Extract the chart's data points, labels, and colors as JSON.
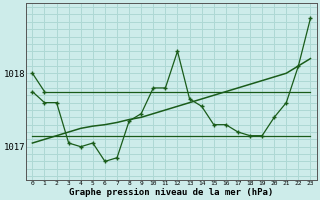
{
  "xlabel": "Graphe pression niveau de la mer (hPa)",
  "hours": [
    0,
    1,
    2,
    3,
    4,
    5,
    6,
    7,
    8,
    9,
    10,
    11,
    12,
    13,
    14,
    15,
    16,
    17,
    18,
    19,
    20,
    21,
    22,
    23
  ],
  "line_flat_high": [
    1018.0,
    1017.75,
    1017.65,
    1017.65,
    1017.65,
    1017.65,
    1017.65,
    1017.65,
    1017.65,
    1017.65,
    1017.65,
    1017.65,
    1017.65,
    1017.65,
    1017.65,
    1017.65,
    1017.65,
    1017.65,
    1017.65,
    1017.65,
    1017.65,
    1017.65,
    1017.65,
    1017.65
  ],
  "line_flat_mid": [
    1017.15,
    1017.15,
    1017.15,
    1017.15,
    1017.15,
    1017.15,
    1017.15,
    1017.15,
    1017.15,
    1017.15,
    1017.15,
    1017.15,
    1017.15,
    1017.15,
    1017.15,
    1017.15,
    1017.15,
    1017.15,
    1017.15,
    1017.15,
    1017.15,
    1017.15,
    1017.15,
    1017.15
  ],
  "line_zigzag": [
    1017.75,
    1017.6,
    1017.6,
    1017.05,
    1017.0,
    1017.05,
    1016.8,
    1016.85,
    1017.35,
    1017.45,
    1017.8,
    1017.8,
    1018.3,
    1017.65,
    1017.55,
    1017.3,
    1017.3,
    1017.2,
    1017.15,
    1017.15,
    1017.4,
    1017.6,
    1018.1,
    1018.75
  ],
  "line_trend": [
    1017.05,
    1017.1,
    1017.15,
    1017.2,
    1017.25,
    1017.28,
    1017.3,
    1017.33,
    1017.37,
    1017.4,
    1017.45,
    1017.5,
    1017.55,
    1017.6,
    1017.65,
    1017.7,
    1017.75,
    1017.8,
    1017.85,
    1017.9,
    1017.95,
    1018.0,
    1018.1,
    1018.2
  ],
  "bg_color": "#cdecea",
  "grid_color": "#aed8d4",
  "line_color": "#1a5c1a",
  "ylim_min": 1016.55,
  "ylim_max": 1018.95,
  "yticks": [
    1017.0,
    1018.0
  ],
  "ytick_labels": [
    "1017",
    "1018"
  ]
}
